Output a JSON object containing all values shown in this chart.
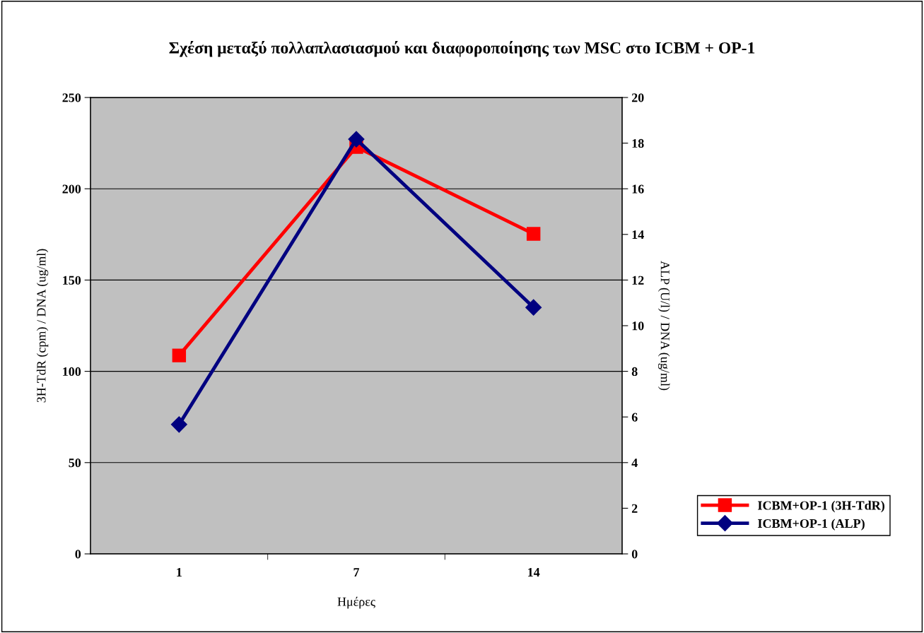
{
  "chart_data": {
    "type": "line",
    "title": "Σχέση μεταξύ πολλαπλασιασμού και διαφοροποίησης των MSC στο ICBM + OP-1",
    "xlabel": "Ημέρες",
    "ylabel": "3H-TdR (cpm) / DNA (ug/ml)",
    "y2label": "ALP (U/l) / DNA (ug/ml)",
    "categories": [
      "1",
      "7",
      "14"
    ],
    "series": [
      {
        "name": "ICBM+OP-1 (3H-TdR)",
        "color": "#ff0000",
        "values": [
          108.7,
          222.9,
          175.3
        ],
        "marker": "square"
      },
      {
        "name": "ICBM+OP-1 (ALP)",
        "color": "#000080",
        "values": [
          5.67,
          18.17,
          10.8
        ],
        "marker": "diamond",
        "axis": "y2"
      }
    ],
    "ylim": [
      0,
      250
    ],
    "yticks": [
      0,
      50,
      100,
      150,
      200,
      250
    ],
    "y2lim": [
      0,
      20
    ],
    "y2ticks": [
      0,
      2,
      4,
      6,
      8,
      10,
      12,
      14,
      16,
      18,
      20
    ],
    "grid": "y",
    "legend": "bottom right",
    "line_style": "solid"
  }
}
